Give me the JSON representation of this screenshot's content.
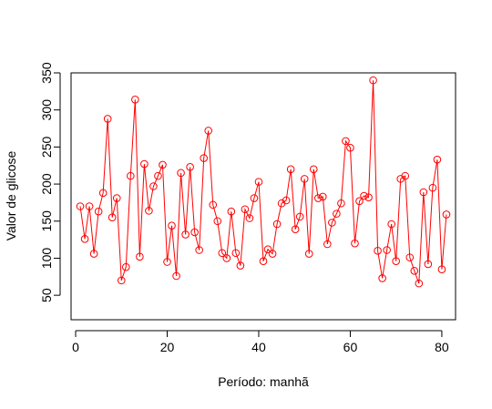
{
  "chart_data": {
    "type": "line",
    "title": "",
    "xlabel": "Período: manhã",
    "ylabel": "Valor de glicose",
    "xlim": [
      -1,
      83
    ],
    "ylim": [
      17,
      350
    ],
    "xticks": [
      0,
      20,
      40,
      60,
      80
    ],
    "yticks": [
      50,
      100,
      150,
      200,
      250,
      300,
      350
    ],
    "grid": false,
    "color": "#ff0000",
    "marker": "open-circle",
    "series": [
      {
        "x": [
          1,
          2,
          3,
          4,
          5,
          6,
          7,
          8,
          9,
          10,
          11,
          12,
          13,
          14,
          15,
          16,
          17,
          18,
          19,
          20,
          21,
          22,
          23,
          24,
          25,
          26,
          27,
          28,
          29,
          30,
          31,
          32,
          33,
          34,
          35,
          36,
          37,
          38,
          39,
          40,
          41,
          42,
          43,
          44,
          45,
          46,
          47,
          48,
          49,
          50,
          51,
          52,
          53,
          54,
          55,
          56,
          57,
          58,
          59,
          60,
          61,
          62,
          63,
          64,
          65,
          66,
          67,
          68,
          69,
          70,
          71,
          72,
          73,
          74,
          75,
          76,
          77,
          78,
          79,
          80,
          81
        ],
        "values": [
          170,
          126,
          170,
          106,
          163,
          188,
          288,
          155,
          181,
          70,
          88,
          211,
          314,
          102,
          227,
          164,
          197,
          211,
          226,
          95,
          144,
          76,
          215,
          132,
          223,
          135,
          111,
          235,
          272,
          172,
          150,
          107,
          100,
          163,
          107,
          90,
          166,
          154,
          181,
          203,
          96,
          112,
          106,
          146,
          174,
          178,
          220,
          139,
          156,
          207,
          106,
          220,
          181,
          183,
          119,
          148,
          160,
          174,
          258,
          249,
          120,
          177,
          184,
          182,
          340,
          110,
          73,
          111,
          146,
          96,
          207,
          211,
          101,
          83,
          66,
          189,
          92,
          195,
          233,
          85,
          159
        ]
      }
    ]
  }
}
